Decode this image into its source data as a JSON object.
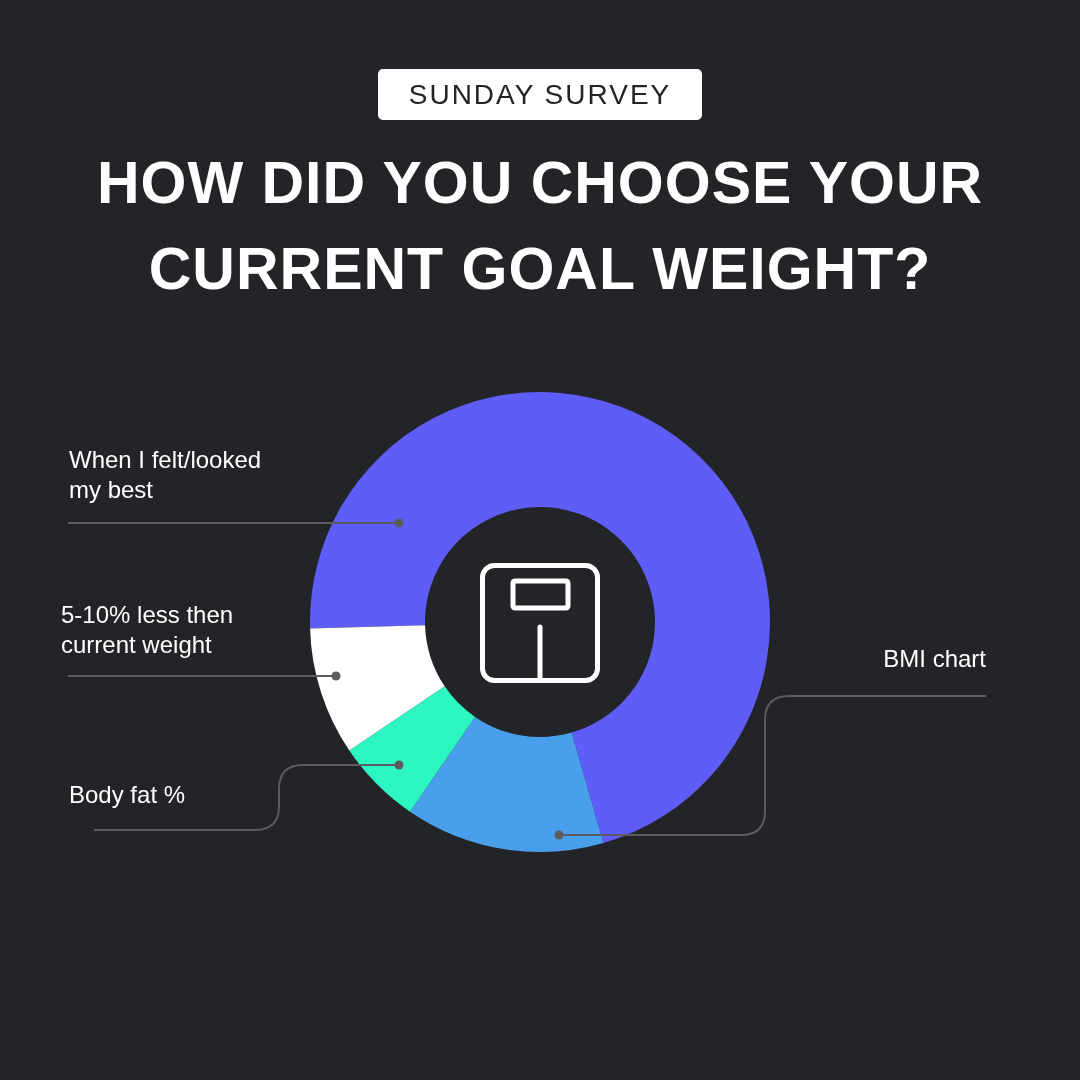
{
  "chart_data": {
    "type": "donut",
    "title": "HOW DID YOU CHOOSE YOUR CURRENT GOAL WEIGHT?",
    "subtitle": "SUNDAY SURVEY",
    "categories": [
      "When I felt/looked my best",
      "BMI chart",
      "Body fat %",
      "5-10% less then current weight"
    ],
    "values": [
      71,
      14,
      6,
      9
    ],
    "colors": [
      "#5f5df8",
      "#4a9fec",
      "#2cf7c2",
      "#ffffff"
    ],
    "legend": false
  }
}
